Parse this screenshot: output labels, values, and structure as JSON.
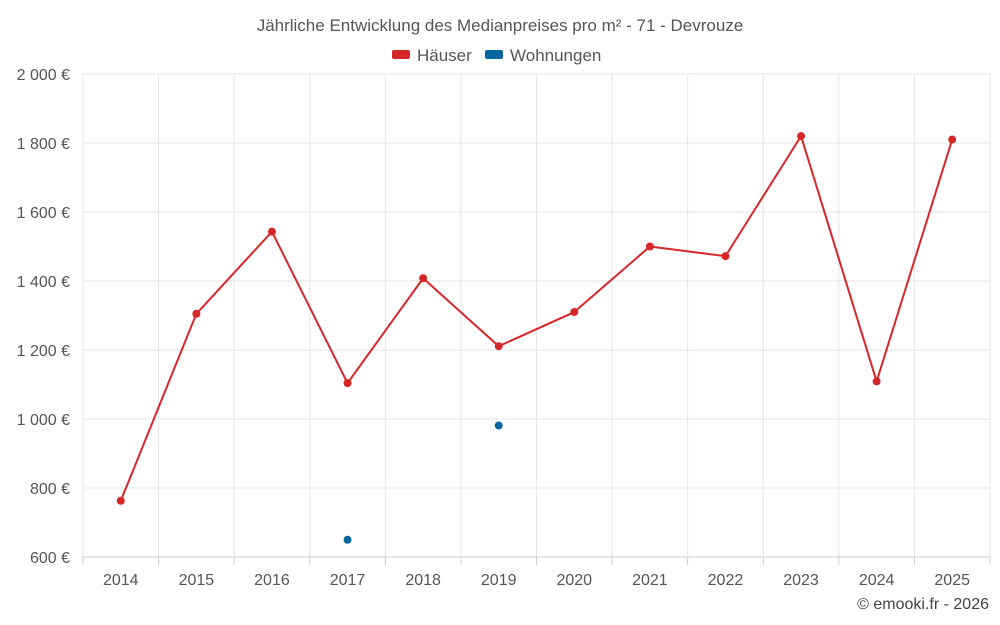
{
  "chart_data": {
    "type": "line",
    "title": "Jährliche Entwicklung des Medianpreises pro m² - 71 - Devrouze",
    "categories": [
      "2014",
      "2015",
      "2016",
      "2017",
      "2018",
      "2019",
      "2020",
      "2021",
      "2022",
      "2023",
      "2024",
      "2025"
    ],
    "ylim": [
      600,
      2000
    ],
    "yticks": [
      600,
      800,
      1000,
      1200,
      1400,
      1600,
      1800,
      2000
    ],
    "ytick_labels": [
      "600 €",
      "800 €",
      "1 000 €",
      "1 200 €",
      "1 400 €",
      "1 600 €",
      "1 800 €",
      "2 000 €"
    ],
    "legend_position": "top-center",
    "grid": true,
    "series": [
      {
        "name": "Häuser",
        "color": "#d62728",
        "values": [
          763,
          1305,
          1543,
          1104,
          1408,
          1211,
          1310,
          1500,
          1472,
          1820,
          1109,
          1810
        ]
      },
      {
        "name": "Wohnungen",
        "color": "#08669e",
        "values": [
          null,
          null,
          null,
          650,
          null,
          981,
          null,
          null,
          null,
          null,
          null,
          null
        ]
      }
    ]
  },
  "credit": "© emooki.fr - 2026"
}
